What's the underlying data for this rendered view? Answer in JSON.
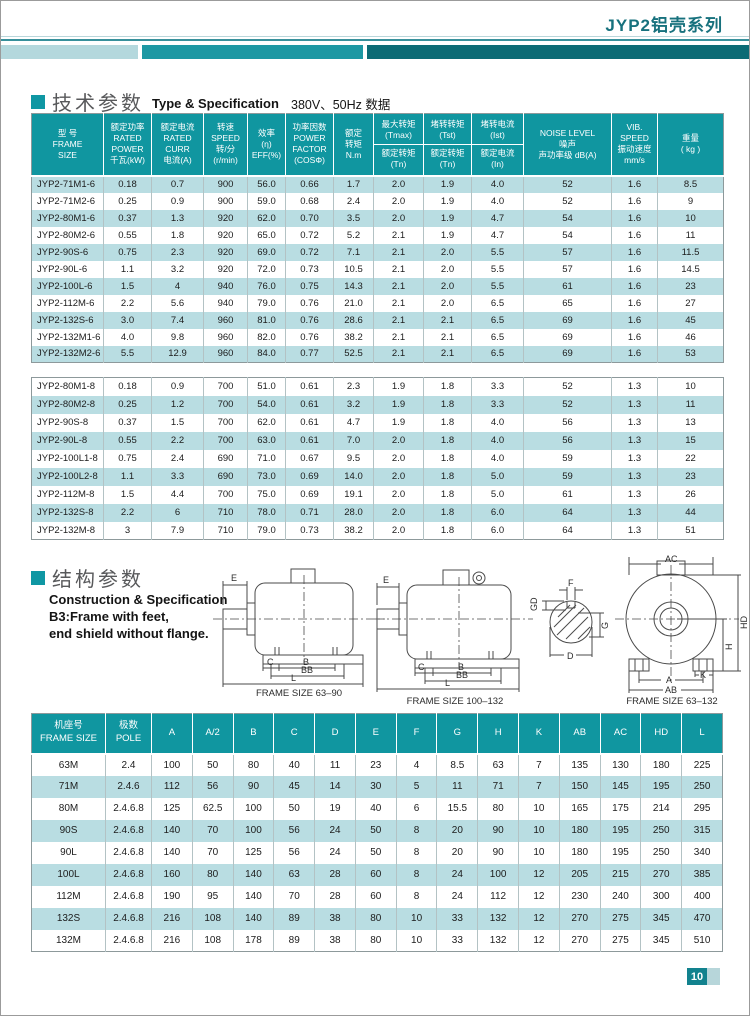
{
  "header": {
    "series_title": "JYP2铝壳系列"
  },
  "spec_section": {
    "title_cn": "技术参数",
    "title_en": "Type & Specification",
    "note": "380V、50Hz 数据"
  },
  "spec_table": {
    "h_frame": "型 号\nFRAME\nSIZE",
    "h_power": "额定功率\nRATED\nPOWER\n千瓦(kW)",
    "h_curr": "额定电流\nRATED\nCURR\n电流(A)",
    "h_speed": "转速\nSPEED\n转/分\n(r/min)",
    "h_eff": "效率\n(η)\nEFF(%)",
    "h_pf": "功率因数\nPOWER\nFACTOR\n(COSΦ)",
    "h_torque": "额定\n转矩\nN.m",
    "h_tmax_top": "最大转矩\n(Tmax)",
    "h_tmax_bot": "额定转矩\n(Tn)",
    "h_tst_top": "堵转转矩\n(Tst)",
    "h_tst_bot": "额定转矩\n(Tn)",
    "h_ist_top": "堵转电流\n(Ist)",
    "h_ist_bot": "额定电流\n(In)",
    "h_noise": "NOISE LEVEL\n噪声\n声功率级 dB(A)",
    "h_vib": "VIB.\nSPEED\n振动速度\nmm/s",
    "h_weight": "重量\n( kg )",
    "rows_6pole": [
      [
        "JYP2-71M1-6",
        "0.18",
        "0.7",
        "900",
        "56.0",
        "0.66",
        "1.7",
        "2.0",
        "1.9",
        "4.0",
        "52",
        "1.6",
        "8.5"
      ],
      [
        "JYP2-71M2-6",
        "0.25",
        "0.9",
        "900",
        "59.0",
        "0.68",
        "2.4",
        "2.0",
        "1.9",
        "4.0",
        "52",
        "1.6",
        "9"
      ],
      [
        "JYP2-80M1-6",
        "0.37",
        "1.3",
        "920",
        "62.0",
        "0.70",
        "3.5",
        "2.0",
        "1.9",
        "4.7",
        "54",
        "1.6",
        "10"
      ],
      [
        "JYP2-80M2-6",
        "0.55",
        "1.8",
        "920",
        "65.0",
        "0.72",
        "5.2",
        "2.1",
        "1.9",
        "4.7",
        "54",
        "1.6",
        "11"
      ],
      [
        "JYP2-90S-6",
        "0.75",
        "2.3",
        "920",
        "69.0",
        "0.72",
        "7.1",
        "2.1",
        "2.0",
        "5.5",
        "57",
        "1.6",
        "11.5"
      ],
      [
        "JYP2-90L-6",
        "1.1",
        "3.2",
        "920",
        "72.0",
        "0.73",
        "10.5",
        "2.1",
        "2.0",
        "5.5",
        "57",
        "1.6",
        "14.5"
      ],
      [
        "JYP2-100L-6",
        "1.5",
        "4",
        "940",
        "76.0",
        "0.75",
        "14.3",
        "2.1",
        "2.0",
        "5.5",
        "61",
        "1.6",
        "23"
      ],
      [
        "JYP2-112M-6",
        "2.2",
        "5.6",
        "940",
        "79.0",
        "0.76",
        "21.0",
        "2.1",
        "2.0",
        "6.5",
        "65",
        "1.6",
        "27"
      ],
      [
        "JYP2-132S-6",
        "3.0",
        "7.4",
        "960",
        "81.0",
        "0.76",
        "28.6",
        "2.1",
        "2.1",
        "6.5",
        "69",
        "1.6",
        "45"
      ],
      [
        "JYP2-132M1-6",
        "4.0",
        "9.8",
        "960",
        "82.0",
        "0.76",
        "38.2",
        "2.1",
        "2.1",
        "6.5",
        "69",
        "1.6",
        "46"
      ],
      [
        "JYP2-132M2-6",
        "5.5",
        "12.9",
        "960",
        "84.0",
        "0.77",
        "52.5",
        "2.1",
        "2.1",
        "6.5",
        "69",
        "1.6",
        "53"
      ]
    ],
    "rows_8pole": [
      [
        "JYP2-80M1-8",
        "0.18",
        "0.9",
        "700",
        "51.0",
        "0.61",
        "2.3",
        "1.9",
        "1.8",
        "3.3",
        "52",
        "1.3",
        "10"
      ],
      [
        "JYP2-80M2-8",
        "0.25",
        "1.2",
        "700",
        "54.0",
        "0.61",
        "3.2",
        "1.9",
        "1.8",
        "3.3",
        "52",
        "1.3",
        "11"
      ],
      [
        "JYP2-90S-8",
        "0.37",
        "1.5",
        "700",
        "62.0",
        "0.61",
        "4.7",
        "1.9",
        "1.8",
        "4.0",
        "56",
        "1.3",
        "13"
      ],
      [
        "JYP2-90L-8",
        "0.55",
        "2.2",
        "700",
        "63.0",
        "0.61",
        "7.0",
        "2.0",
        "1.8",
        "4.0",
        "56",
        "1.3",
        "15"
      ],
      [
        "JYP2-100L1-8",
        "0.75",
        "2.4",
        "690",
        "71.0",
        "0.67",
        "9.5",
        "2.0",
        "1.8",
        "4.0",
        "59",
        "1.3",
        "22"
      ],
      [
        "JYP2-100L2-8",
        "1.1",
        "3.3",
        "690",
        "73.0",
        "0.69",
        "14.0",
        "2.0",
        "1.8",
        "5.0",
        "59",
        "1.3",
        "23"
      ],
      [
        "JYP2-112M-8",
        "1.5",
        "4.4",
        "700",
        "75.0",
        "0.69",
        "19.1",
        "2.0",
        "1.8",
        "5.0",
        "61",
        "1.3",
        "26"
      ],
      [
        "JYP2-132S-8",
        "2.2",
        "6",
        "710",
        "78.0",
        "0.71",
        "28.0",
        "2.0",
        "1.8",
        "6.0",
        "64",
        "1.3",
        "44"
      ],
      [
        "JYP2-132M-8",
        "3",
        "7.9",
        "710",
        "79.0",
        "0.73",
        "38.2",
        "2.0",
        "1.8",
        "6.0",
        "64",
        "1.3",
        "51"
      ]
    ]
  },
  "construction": {
    "title_cn": "结构参数",
    "desc1": "Construction & Specification",
    "desc2": "B3:Frame with feet,",
    "desc3": "end shield without flange.",
    "d1": {
      "label": "FRAME SIZE 63–90",
      "e": "E",
      "c": "C",
      "b": "B",
      "bb": "BB",
      "l": "L"
    },
    "d2": {
      "label": "FRAME SIZE 100–132",
      "e": "E",
      "c": "C",
      "b": "B",
      "bb": "BB",
      "l": "L"
    },
    "shaft": {
      "f": "F",
      "gd": "GD",
      "g": "G",
      "d": "D"
    },
    "d3": {
      "label": "FRAME SIZE 63–132",
      "ac": "AC",
      "hd": "HD",
      "h": "H",
      "a": "A",
      "k": "K",
      "ab": "AB"
    }
  },
  "dim_table": {
    "h_frame": "机座号\nFRAME SIZE",
    "h_pole": "极数\nPOLE",
    "cols": [
      "A",
      "A/2",
      "B",
      "C",
      "D",
      "E",
      "F",
      "G",
      "H",
      "K",
      "AB",
      "AC",
      "HD",
      "L"
    ],
    "rows": [
      [
        "63M",
        "2.4",
        "100",
        "50",
        "80",
        "40",
        "11",
        "23",
        "4",
        "8.5",
        "63",
        "7",
        "135",
        "130",
        "180",
        "225"
      ],
      [
        "71M",
        "2.4.6",
        "112",
        "56",
        "90",
        "45",
        "14",
        "30",
        "5",
        "11",
        "71",
        "7",
        "150",
        "145",
        "195",
        "250"
      ],
      [
        "80M",
        "2.4.6.8",
        "125",
        "62.5",
        "100",
        "50",
        "19",
        "40",
        "6",
        "15.5",
        "80",
        "10",
        "165",
        "175",
        "214",
        "295"
      ],
      [
        "90S",
        "2.4.6.8",
        "140",
        "70",
        "100",
        "56",
        "24",
        "50",
        "8",
        "20",
        "90",
        "10",
        "180",
        "195",
        "250",
        "315"
      ],
      [
        "90L",
        "2.4.6.8",
        "140",
        "70",
        "125",
        "56",
        "24",
        "50",
        "8",
        "20",
        "90",
        "10",
        "180",
        "195",
        "250",
        "340"
      ],
      [
        "100L",
        "2.4.6.8",
        "160",
        "80",
        "140",
        "63",
        "28",
        "60",
        "8",
        "24",
        "100",
        "12",
        "205",
        "215",
        "270",
        "385"
      ],
      [
        "112M",
        "2.4.6.8",
        "190",
        "95",
        "140",
        "70",
        "28",
        "60",
        "8",
        "24",
        "112",
        "12",
        "230",
        "240",
        "300",
        "400"
      ],
      [
        "132S",
        "2.4.6.8",
        "216",
        "108",
        "140",
        "89",
        "38",
        "80",
        "10",
        "33",
        "132",
        "12",
        "270",
        "275",
        "345",
        "470"
      ],
      [
        "132M",
        "2.4.6.8",
        "216",
        "108",
        "178",
        "89",
        "38",
        "80",
        "10",
        "33",
        "132",
        "12",
        "270",
        "275",
        "345",
        "510"
      ]
    ]
  },
  "footer": {
    "page_number": "10"
  }
}
